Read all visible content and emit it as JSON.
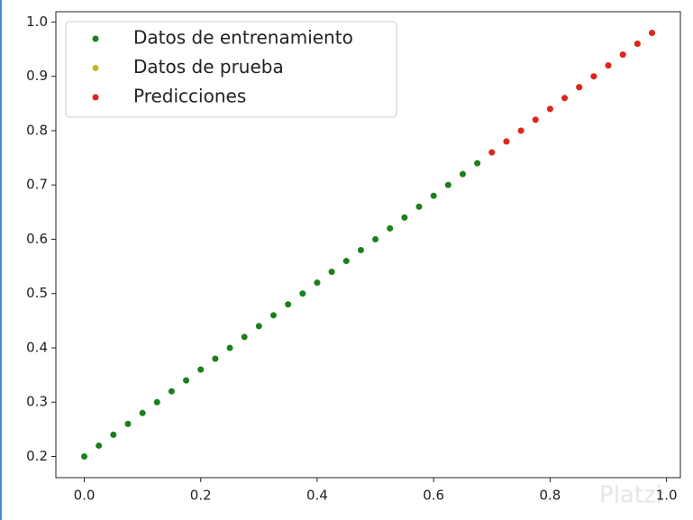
{
  "chart_data": {
    "type": "scatter",
    "series": [
      {
        "name": "Datos de entrenamiento",
        "color": "#1a801a",
        "x": [
          0,
          0.025,
          0.05,
          0.075,
          0.1,
          0.125,
          0.15,
          0.175,
          0.2,
          0.225,
          0.25,
          0.275,
          0.3,
          0.325,
          0.35,
          0.375,
          0.4,
          0.425,
          0.45,
          0.475,
          0.5,
          0.525,
          0.55,
          0.575,
          0.6,
          0.625,
          0.65,
          0.675
        ],
        "values": [
          0.2,
          0.22,
          0.24,
          0.26,
          0.28,
          0.3,
          0.32,
          0.34,
          0.36,
          0.38,
          0.4,
          0.42,
          0.44,
          0.46,
          0.48,
          0.5,
          0.52,
          0.54,
          0.56,
          0.58,
          0.6,
          0.62,
          0.64,
          0.66,
          0.68,
          0.7,
          0.72,
          0.74
        ]
      },
      {
        "name": "Datos de prueba",
        "color": "#c8b42a",
        "x": [
          0.7,
          0.725,
          0.75,
          0.775,
          0.8,
          0.825,
          0.85,
          0.875,
          0.9,
          0.925,
          0.95,
          0.975
        ],
        "values": [
          0.76,
          0.78,
          0.8,
          0.82,
          0.84,
          0.86,
          0.88,
          0.9,
          0.92,
          0.94,
          0.96,
          0.98
        ]
      },
      {
        "name": "Predicciones",
        "color": "#e0251f",
        "x": [
          0.7,
          0.725,
          0.75,
          0.775,
          0.8,
          0.825,
          0.85,
          0.875,
          0.9,
          0.925,
          0.95,
          0.975
        ],
        "values": [
          0.76,
          0.78,
          0.8,
          0.82,
          0.84,
          0.86,
          0.88,
          0.9,
          0.92,
          0.94,
          0.96,
          0.98
        ]
      }
    ],
    "xlim": [
      -0.04875,
      1.02375
    ],
    "xticks": [
      {
        "value": 0,
        "label": "0.0"
      },
      0.2,
      0.4,
      0.6,
      0.8,
      {
        "value": 1,
        "label": "1.0"
      }
    ],
    "ylim": [
      0.161,
      1.019
    ],
    "yticks": [
      0.2,
      0.3,
      0.4,
      0.5,
      0.6,
      0.7,
      0.8,
      0.9,
      {
        "value": 1,
        "label": "1.0"
      }
    ],
    "legend": "upper left"
  },
  "watermark": "Platzi"
}
